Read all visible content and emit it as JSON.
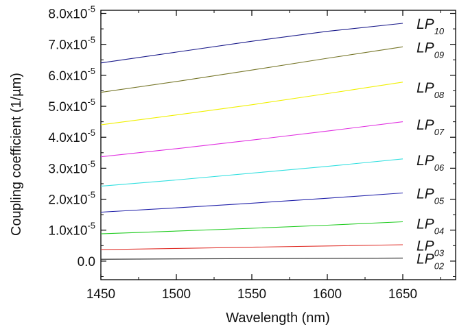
{
  "chart_data": {
    "type": "line",
    "title": "",
    "xlabel": "Wavelength (nm)",
    "ylabel": "Coupling coefficient (1/µm)",
    "xlim": [
      1450,
      1685
    ],
    "ylim": [
      -6e-06,
      8.1e-05
    ],
    "xticks": [
      1450,
      1500,
      1550,
      1600,
      1650
    ],
    "x_tick_labels": [
      "1450",
      "1500",
      "1550",
      "1600",
      "1650"
    ],
    "yticks": [
      {
        "value": 0.0,
        "mantissa": "0.0",
        "exp": ""
      },
      {
        "value": 1e-05,
        "mantissa": "1.0x10",
        "exp": "-5"
      },
      {
        "value": 2e-05,
        "mantissa": "2.0x10",
        "exp": "-5"
      },
      {
        "value": 3e-05,
        "mantissa": "3.0x10",
        "exp": "-5"
      },
      {
        "value": 4e-05,
        "mantissa": "4.0x10",
        "exp": "-5"
      },
      {
        "value": 5e-05,
        "mantissa": "5.0x10",
        "exp": "-5"
      },
      {
        "value": 6e-05,
        "mantissa": "6.0x10",
        "exp": "-5"
      },
      {
        "value": 7e-05,
        "mantissa": "7.0x10",
        "exp": "-5"
      },
      {
        "value": 8e-05,
        "mantissa": "8.0x10",
        "exp": "-5"
      }
    ],
    "grid": false,
    "legend": "inline labels at right end of lines",
    "x": [
      1450,
      1500,
      1550,
      1600,
      1650
    ],
    "series": [
      {
        "name": "LP02",
        "label_main": "LP",
        "label_sub": "02",
        "color": "#222222",
        "values": [
          6e-07,
          7e-07,
          8e-07,
          9e-07,
          1e-06
        ]
      },
      {
        "name": "LP03",
        "label_main": "LP",
        "label_sub": "03",
        "color": "#e0302a",
        "values": [
          3.7e-06,
          4.1e-06,
          4.5e-06,
          4.9e-06,
          5.3e-06
        ]
      },
      {
        "name": "LP04",
        "label_main": "LP",
        "label_sub": "04",
        "color": "#22cc22",
        "values": [
          8.8e-06,
          9.7e-06,
          1.06e-05,
          1.16e-05,
          1.27e-05
        ]
      },
      {
        "name": "LP05",
        "label_main": "LP",
        "label_sub": "05",
        "color": "#2222aa",
        "values": [
          1.58e-05,
          1.72e-05,
          1.87e-05,
          2.03e-05,
          2.2e-05
        ]
      },
      {
        "name": "LP06",
        "label_main": "LP",
        "label_sub": "06",
        "color": "#33e0e0",
        "values": [
          2.42e-05,
          2.62e-05,
          2.84e-05,
          3.06e-05,
          3.3e-05
        ]
      },
      {
        "name": "LP07",
        "label_main": "LP",
        "label_sub": "07",
        "color": "#e030e0",
        "values": [
          3.37e-05,
          3.63e-05,
          3.91e-05,
          4.2e-05,
          4.5e-05
        ]
      },
      {
        "name": "LP08",
        "label_main": "LP",
        "label_sub": "08",
        "color": "#f0f000",
        "values": [
          4.4e-05,
          4.72e-05,
          5.05e-05,
          5.41e-05,
          5.78e-05
        ]
      },
      {
        "name": "LP09",
        "label_main": "LP",
        "label_sub": "09",
        "color": "#77772a",
        "values": [
          5.45e-05,
          5.8e-05,
          6.17e-05,
          6.55e-05,
          6.92e-05
        ]
      },
      {
        "name": "LP10",
        "label_main": "LP",
        "label_sub": "10",
        "color": "#1a1a8a",
        "values": [
          6.4e-05,
          6.75e-05,
          7.1e-05,
          7.42e-05,
          7.68e-05
        ]
      }
    ],
    "label_positions_y": [
      1e-06,
      5.2e-06,
      1.23e-05,
      2.2e-05,
      3.27e-05,
      4.43e-05,
      5.62e-05,
      6.92e-05,
      7.68e-05
    ]
  }
}
